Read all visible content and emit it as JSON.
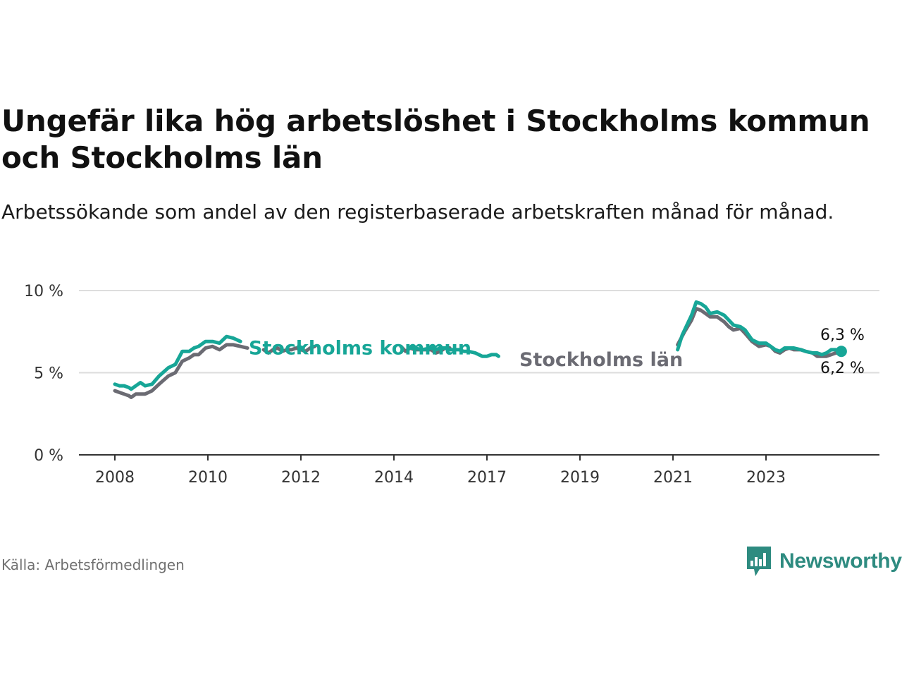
{
  "title": "Ungefär lika hög arbetslöshet i Stockholms kommun och Stockholms län",
  "subtitle": "Arbetssökande som andel av den registerbaserade arbetskraften månad för månad.",
  "source": "Källa: Arbetsförmedlingen",
  "logo": {
    "text": "Newsworthy",
    "icon": "newsworthy-chart-icon"
  },
  "colors": {
    "kommun": "#17a697",
    "lan": "#6b6b73",
    "grid": "#dddddd",
    "axis": "#333333",
    "logo": "#2e8b80"
  },
  "chart_data": {
    "type": "line",
    "title": "Ungefär lika hög arbetslöshet i Stockholms kommun och Stockholms län",
    "ylabel": "",
    "xlabel": "",
    "ylim": [
      0,
      10
    ],
    "yticks": [
      {
        "value": 0,
        "label": "0 %"
      },
      {
        "value": 5,
        "label": "5 %"
      },
      {
        "value": 10,
        "label": "10 %"
      }
    ],
    "xticks": [
      "2008",
      "2010",
      "2012",
      "2014",
      "2017",
      "2019",
      "2021",
      "2023"
    ],
    "series": [
      {
        "key": "lan",
        "name": "Stockholms län",
        "color": "#6b6b73",
        "end_label": "6,2 %",
        "segments": [
          [
            [
              0.0,
              3.9
            ],
            [
              0.1,
              3.8
            ],
            [
              0.2,
              3.7
            ],
            [
              0.3,
              3.6
            ],
            [
              0.35,
              3.5
            ],
            [
              0.45,
              3.7
            ],
            [
              0.55,
              3.7
            ],
            [
              0.65,
              3.7
            ],
            [
              0.8,
              3.9
            ],
            [
              0.95,
              4.3
            ],
            [
              1.15,
              4.8
            ],
            [
              1.3,
              5.0
            ],
            [
              1.45,
              5.7
            ],
            [
              1.6,
              5.9
            ],
            [
              1.7,
              6.1
            ],
            [
              1.8,
              6.1
            ],
            [
              1.95,
              6.5
            ],
            [
              2.1,
              6.6
            ],
            [
              2.25,
              6.4
            ],
            [
              2.4,
              6.7
            ],
            [
              2.55,
              6.7
            ],
            [
              2.7,
              6.6
            ],
            [
              2.85,
              6.5
            ]
          ],
          [
            [
              3.2,
              6.4
            ],
            [
              3.3,
              6.2
            ],
            [
              3.4,
              6.4
            ],
            [
              3.5,
              6.5
            ],
            [
              3.6,
              6.3
            ],
            [
              3.7,
              6.4
            ],
            [
              3.8,
              6.4
            ],
            [
              3.9,
              6.5
            ],
            [
              4.0,
              6.4
            ],
            [
              4.1,
              6.3
            ],
            [
              4.2,
              6.5
            ],
            [
              4.3,
              6.6
            ]
          ],
          [
            [
              6.15,
              6.6
            ],
            [
              6.25,
              6.3
            ],
            [
              6.35,
              6.5
            ],
            [
              6.45,
              6.4
            ],
            [
              6.6,
              6.4
            ],
            [
              6.8,
              6.4
            ],
            [
              6.9,
              6.2
            ],
            [
              7.0,
              6.3
            ],
            [
              7.1,
              6.5
            ],
            [
              7.2,
              6.5
            ]
          ],
          [
            [
              12.1,
              6.7
            ],
            [
              12.25,
              7.5
            ],
            [
              12.4,
              8.2
            ],
            [
              12.5,
              8.9
            ],
            [
              12.6,
              8.8
            ],
            [
              12.7,
              8.6
            ],
            [
              12.8,
              8.4
            ],
            [
              12.95,
              8.4
            ],
            [
              13.1,
              8.1
            ],
            [
              13.2,
              7.8
            ],
            [
              13.3,
              7.6
            ],
            [
              13.45,
              7.7
            ],
            [
              13.55,
              7.4
            ],
            [
              13.7,
              6.9
            ],
            [
              13.85,
              6.6
            ],
            [
              14.0,
              6.7
            ],
            [
              14.1,
              6.6
            ],
            [
              14.2,
              6.3
            ],
            [
              14.3,
              6.2
            ],
            [
              14.4,
              6.4
            ],
            [
              14.5,
              6.5
            ],
            [
              14.6,
              6.4
            ],
            [
              14.75,
              6.4
            ],
            [
              14.85,
              6.3
            ],
            [
              15.0,
              6.2
            ],
            [
              15.1,
              6.0
            ],
            [
              15.2,
              6.0
            ],
            [
              15.3,
              6.0
            ],
            [
              15.4,
              6.1
            ],
            [
              15.5,
              6.2
            ],
            [
              15.6,
              6.2
            ],
            [
              15.65,
              6.2
            ]
          ]
        ]
      },
      {
        "key": "kommun",
        "name": "Stockholms kommun",
        "color": "#17a697",
        "end_label": "6,3 %",
        "segments": [
          [
            [
              0.0,
              4.3
            ],
            [
              0.1,
              4.2
            ],
            [
              0.2,
              4.2
            ],
            [
              0.3,
              4.1
            ],
            [
              0.35,
              4.0
            ],
            [
              0.45,
              4.2
            ],
            [
              0.55,
              4.4
            ],
            [
              0.65,
              4.2
            ],
            [
              0.8,
              4.3
            ],
            [
              0.95,
              4.8
            ],
            [
              1.15,
              5.3
            ],
            [
              1.3,
              5.5
            ],
            [
              1.45,
              6.3
            ],
            [
              1.6,
              6.3
            ],
            [
              1.7,
              6.5
            ],
            [
              1.8,
              6.6
            ],
            [
              1.95,
              6.9
            ],
            [
              2.1,
              6.9
            ],
            [
              2.25,
              6.8
            ],
            [
              2.4,
              7.2
            ],
            [
              2.55,
              7.1
            ],
            [
              2.7,
              6.9
            ]
          ],
          [
            [
              3.95,
              6.6
            ],
            [
              4.05,
              6.5
            ]
          ],
          [
            [
              6.35,
              6.5
            ],
            [
              6.45,
              6.5
            ],
            [
              6.6,
              6.4
            ],
            [
              6.8,
              6.5
            ],
            [
              6.9,
              6.4
            ],
            [
              7.0,
              6.5
            ],
            [
              7.1,
              6.5
            ],
            [
              7.2,
              6.4
            ],
            [
              7.3,
              6.4
            ],
            [
              7.4,
              6.4
            ],
            [
              7.5,
              6.3
            ],
            [
              7.6,
              6.3
            ],
            [
              7.75,
              6.2
            ],
            [
              7.9,
              6.0
            ],
            [
              8.0,
              6.0
            ],
            [
              8.1,
              6.1
            ],
            [
              8.2,
              6.1
            ],
            [
              8.25,
              6.0
            ]
          ],
          [
            [
              12.1,
              6.4
            ],
            [
              12.2,
              7.3
            ],
            [
              12.3,
              7.9
            ],
            [
              12.4,
              8.5
            ],
            [
              12.5,
              9.3
            ],
            [
              12.6,
              9.2
            ],
            [
              12.7,
              9.0
            ],
            [
              12.8,
              8.6
            ],
            [
              12.95,
              8.7
            ],
            [
              13.1,
              8.5
            ],
            [
              13.2,
              8.2
            ],
            [
              13.3,
              7.9
            ],
            [
              13.45,
              7.8
            ],
            [
              13.55,
              7.6
            ],
            [
              13.7,
              7.0
            ],
            [
              13.85,
              6.8
            ],
            [
              14.0,
              6.8
            ],
            [
              14.1,
              6.6
            ],
            [
              14.2,
              6.4
            ],
            [
              14.3,
              6.3
            ],
            [
              14.4,
              6.5
            ],
            [
              14.5,
              6.5
            ],
            [
              14.6,
              6.5
            ],
            [
              14.75,
              6.4
            ],
            [
              14.85,
              6.3
            ],
            [
              15.0,
              6.2
            ],
            [
              15.1,
              6.2
            ],
            [
              15.2,
              6.1
            ],
            [
              15.3,
              6.2
            ],
            [
              15.4,
              6.4
            ],
            [
              15.5,
              6.4
            ],
            [
              15.6,
              6.3
            ],
            [
              15.65,
              6.3
            ]
          ]
        ]
      }
    ]
  }
}
